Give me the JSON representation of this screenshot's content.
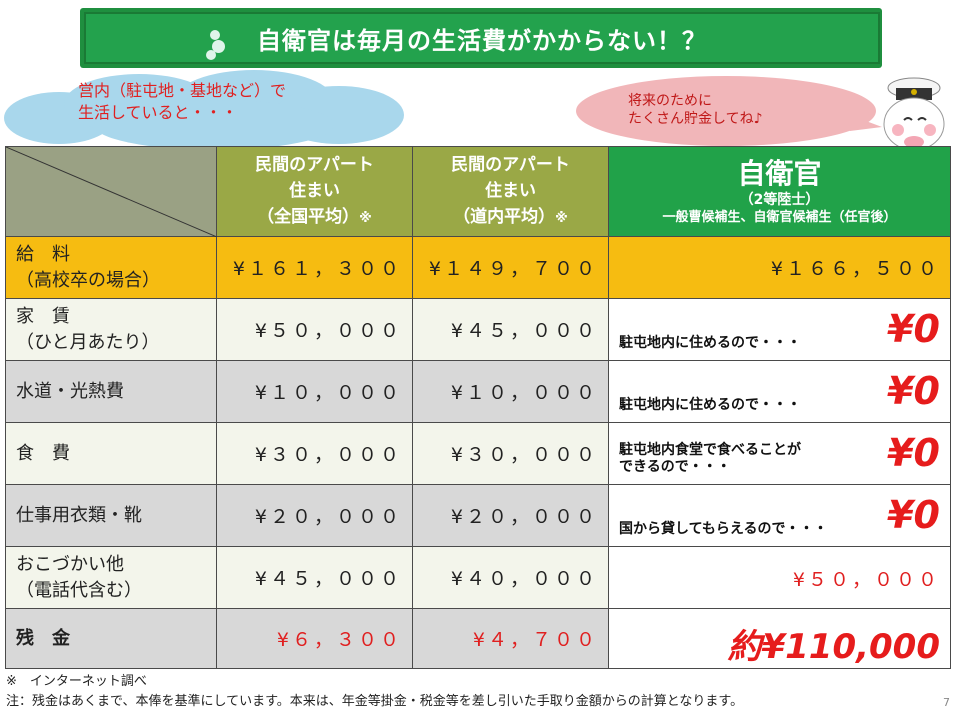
{
  "banner": {
    "title": "自衛官は毎月の生活費がかからない！？"
  },
  "cloud": {
    "line1": "営内（駐屯地・基地など）で",
    "line2": "生活していると・・・"
  },
  "pink_bubble": {
    "line1": "将来のために",
    "line2": "たくさん貯金してね♪"
  },
  "table": {
    "header": {
      "col2": {
        "line1": "民間のアパート",
        "line2": "住まい",
        "line3": "（全国平均）",
        "mark": "※"
      },
      "col3": {
        "line1": "民間のアパート",
        "line2": "住まい",
        "line3": "（道内平均）",
        "mark": "※"
      },
      "col4": {
        "title": "自衛官",
        "rank": "（2等陸士）",
        "sub": "一般曹候補生、自衛官候補生（任官後）"
      }
    },
    "rows": [
      {
        "label1": "給　料",
        "label2": "（高校卒の場合）",
        "v2": "¥１６１，３００",
        "v3": "¥１４９，７００",
        "v4": "¥１６６，５００"
      },
      {
        "label1": "家　賃",
        "label2": "（ひと月あたり）",
        "v2": "¥５０，０００",
        "v3": "¥４５，０００",
        "reason1": "駐屯地内に住めるので・・・",
        "reason2": "",
        "zero": "¥0"
      },
      {
        "label1": "水道・光熱費",
        "v2": "¥１０，０００",
        "v3": "¥１０，０００",
        "reason1": "駐屯地内に住めるので・・・",
        "reason2": "",
        "zero": "¥0"
      },
      {
        "label1": "食　費",
        "v2": "¥３０，０００",
        "v3": "¥３０，０００",
        "reason1": "駐屯地内食堂で食べることが",
        "reason2": "できるので・・・",
        "zero": "¥0"
      },
      {
        "label1": "仕事用衣類・靴",
        "v2": "¥２０，０００",
        "v3": "¥２０，０００",
        "reason1": "国から貸してもらえるので・・・",
        "reason2": "",
        "zero": "¥0"
      },
      {
        "label1": "おこづかい他",
        "label2": "（電話代含む）",
        "v2": "¥４５，０００",
        "v3": "¥４０，０００",
        "v4": "¥５０，０００"
      },
      {
        "label1": "残　金",
        "v2": "¥６，３００",
        "v3": "¥４，７００",
        "v4": "約¥110,000"
      }
    ]
  },
  "footnotes": {
    "line1": "※　インターネット調べ",
    "line2": "注：残金はあくまで、本俸を基準にしています。本来は、年金等掛金・税金等を差し引いた手取り金額からの計算となります。"
  },
  "page_number": "7",
  "colors": {
    "title_green": "#23a24d",
    "salary_row": "#f6bc11",
    "header_olive": "#9aa846",
    "accent_red": "#e61c1c"
  }
}
